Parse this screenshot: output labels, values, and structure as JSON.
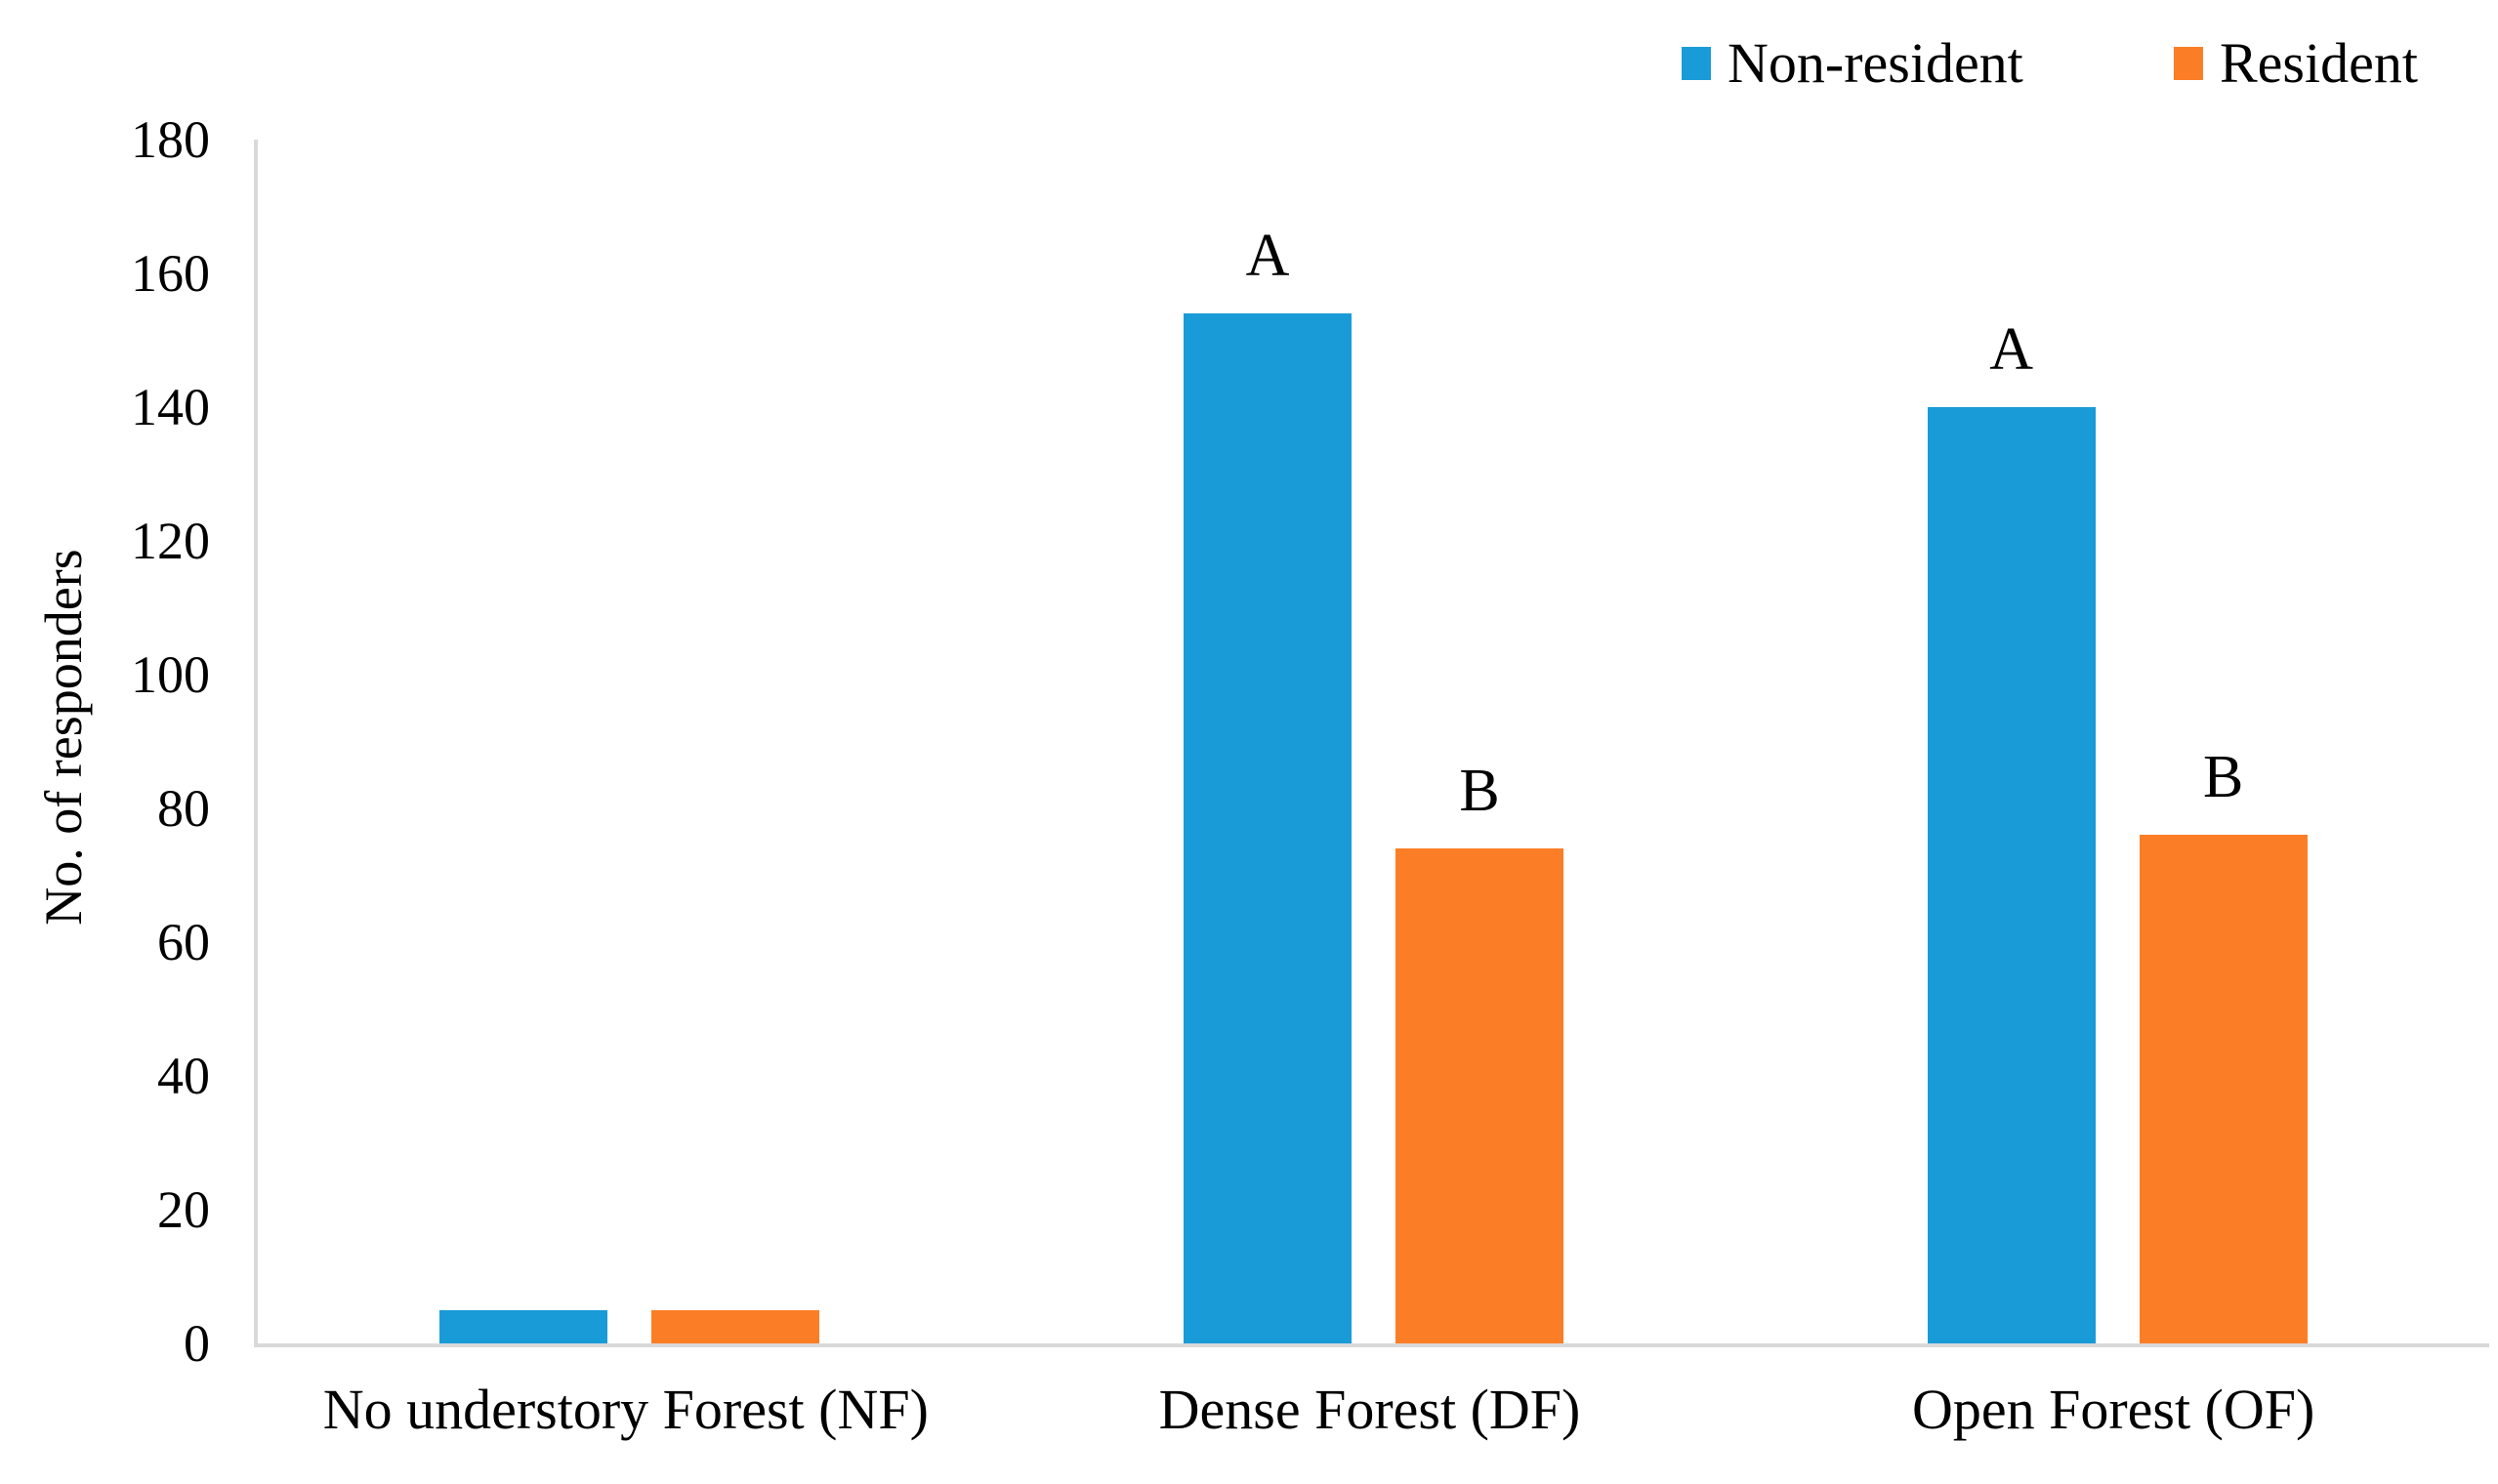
{
  "chart_data": {
    "type": "bar",
    "categories": [
      "No understory Forest (NF)",
      "Dense Forest (DF)",
      "Open Forest (OF)"
    ],
    "series": [
      {
        "name": "Non-resident",
        "color": "#199bd7",
        "values": [
          5,
          154,
          140
        ],
        "bar_letters": [
          "",
          "A",
          "A"
        ]
      },
      {
        "name": "Resident",
        "color": "#fb7e26",
        "values": [
          5,
          74,
          76
        ],
        "bar_letters": [
          "",
          "B",
          "B"
        ]
      }
    ],
    "xlabel": "",
    "ylabel": "No. of responders",
    "ylim": [
      0,
      180
    ],
    "yticks": [
      0,
      20,
      40,
      60,
      80,
      100,
      120,
      140,
      160,
      180
    ],
    "grid": false,
    "legend_position": "top-right",
    "annotations": [
      "A",
      "B"
    ]
  },
  "colors": {
    "axis_line": "#d9d9d9",
    "text": "#000000"
  }
}
